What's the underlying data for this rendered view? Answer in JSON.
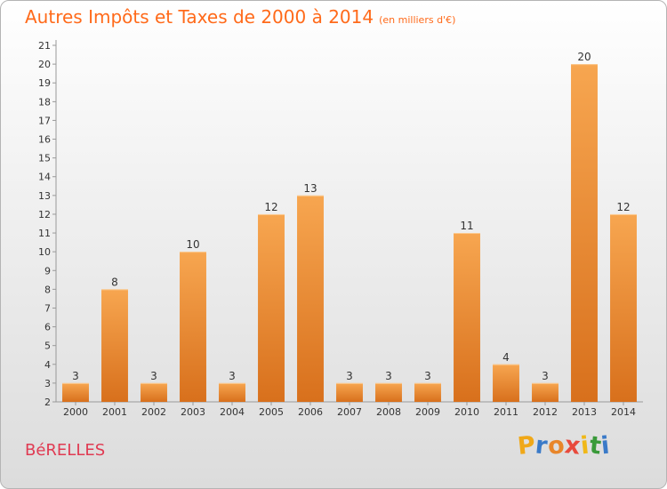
{
  "chart_data": {
    "type": "bar",
    "title": "Autres Impôts et Taxes de 2000 à 2014",
    "unit": "(en milliers d'€)",
    "categories": [
      "2000",
      "2001",
      "2002",
      "2003",
      "2004",
      "2005",
      "2006",
      "2007",
      "2008",
      "2009",
      "2010",
      "2011",
      "2012",
      "2013",
      "2014"
    ],
    "values": [
      3,
      8,
      3,
      10,
      3,
      12,
      13,
      3,
      3,
      3,
      11,
      4,
      3,
      20,
      12
    ],
    "ylim": [
      2,
      21
    ],
    "yticks": [
      2,
      3,
      4,
      5,
      6,
      7,
      8,
      9,
      10,
      11,
      12,
      13,
      14,
      15,
      16,
      17,
      18,
      19,
      20,
      21
    ],
    "grid": false,
    "bar_color": "#f5a04a"
  },
  "footer": {
    "commune": "BéRELLES",
    "brand_letters": [
      "P",
      "r",
      "o",
      "x",
      "i",
      "t",
      "i"
    ],
    "brand_colors": [
      "#f0a818",
      "#3a7ac8",
      "#e8862a",
      "#e84a3c",
      "#f0b818",
      "#3a9a3a",
      "#3a7ac8"
    ]
  }
}
